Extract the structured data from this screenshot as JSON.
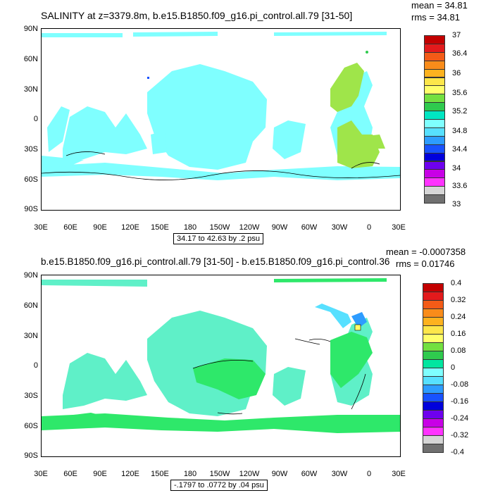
{
  "panels": [
    {
      "title": "SALINITY at z=3379.8m, b.e15.B1850.f09_g16.pi_control.all.79 [31-50]",
      "mean": "mean = 34.81",
      "rms": "rms = 34.81",
      "range": "34.17 to 42.63 by .2 psu",
      "ocean_color": "#7fffff",
      "basin_color": "#9fe54a",
      "colorbar": {
        "labels": [
          "37",
          "36.4",
          "36",
          "35.6",
          "35.2",
          "34.8",
          "34.4",
          "34",
          "33.6",
          "33"
        ],
        "colors": [
          "#c30000",
          "#e31a1c",
          "#f35b17",
          "#f98c1a",
          "#fdb21f",
          "#fde64a",
          "#ffff6a",
          "#73e040",
          "#2fca4e",
          "#00e6c2",
          "#7fffff",
          "#57e0ff",
          "#2d9cff",
          "#1852ff",
          "#0000dc",
          "#6e00ee",
          "#c800e6",
          "#ff33ff",
          "#d6d6d6",
          "#707070"
        ]
      }
    },
    {
      "title": "b.e15.B1850.f09_g16.pi_control.all.79 [31-50] - b.e15.B1850.f09_g16.pi_control.36 [31-50]",
      "mean": "mean = -0.0007358",
      "rms": "rms = 0.01746",
      "range": "-.1797 to .0772 by .04 psu",
      "ocean_color": "#5ff0c8",
      "basin_color": "#2ee86a",
      "colorbar": {
        "labels": [
          "0.4",
          "0.32",
          "0.24",
          "0.16",
          "0.08",
          "0",
          "-0.08",
          "-0.16",
          "-0.24",
          "-0.32",
          "-0.4"
        ],
        "colors": [
          "#c30000",
          "#e31a1c",
          "#f35b17",
          "#f98c1a",
          "#fdb21f",
          "#fde64a",
          "#ffff6a",
          "#73e040",
          "#2fca4e",
          "#00e6a0",
          "#7fffff",
          "#57e0ff",
          "#2d9cff",
          "#1852ff",
          "#0000dc",
          "#6e00ee",
          "#c800e6",
          "#ff33ff",
          "#d6d6d6",
          "#707070"
        ]
      }
    }
  ],
  "lat_labels": [
    "90N",
    "60N",
    "30N",
    "0",
    "30S",
    "60S",
    "90S"
  ],
  "lon_labels": [
    "30E",
    "60E",
    "90E",
    "120E",
    "150E",
    "180",
    "150W",
    "120W",
    "90W",
    "60W",
    "30W",
    "0",
    "30E"
  ]
}
